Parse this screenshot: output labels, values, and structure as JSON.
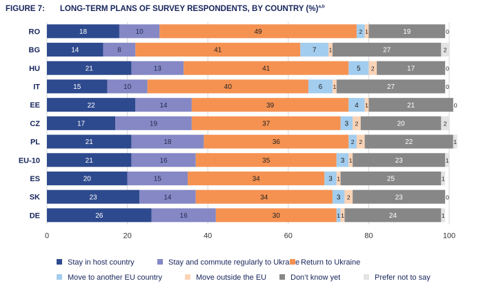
{
  "figure_label": "FIGURE 7:",
  "chart_data": {
    "type": "bar",
    "orientation": "horizontal",
    "stacked": true,
    "title": "LONG-TERM PLANS OF SURVEY RESPONDENTS, BY COUNTRY (%)",
    "title_superscript": "a,b",
    "xlabel": "",
    "ylabel": "",
    "xlim": [
      0,
      100
    ],
    "x_ticks": [
      "0",
      "20",
      "40",
      "60",
      "80",
      "100"
    ],
    "grid": true,
    "legend_position": "bottom",
    "categories": [
      "RO",
      "BG",
      "HU",
      "IT",
      "EE",
      "CZ",
      "PL",
      "EU-10",
      "ES",
      "SK",
      "DE"
    ],
    "series": [
      {
        "name": "Stay in host country",
        "color": "#2e4a8e",
        "label_color": "#ffffff",
        "values": [
          18,
          14,
          21,
          15,
          22,
          17,
          21,
          21,
          20,
          23,
          26
        ]
      },
      {
        "name": "Stay and commute regularly to Ukraine",
        "color": "#8588c5",
        "label_color": "#1f2a4e",
        "values": [
          10,
          8,
          13,
          10,
          14,
          19,
          18,
          16,
          15,
          14,
          16
        ]
      },
      {
        "name": "Return to Ukraine",
        "color": "#f59252",
        "label_color": "#1f1f1f",
        "values": [
          49,
          41,
          41,
          40,
          39,
          37,
          36,
          35,
          34,
          34,
          30
        ]
      },
      {
        "name": "Move to another EU country",
        "color": "#a3cdee",
        "label_color": "#1f1f1f",
        "values": [
          2,
          7,
          5,
          6,
          4,
          3,
          2,
          3,
          3,
          3,
          1
        ]
      },
      {
        "name": "Move outside the EU",
        "color": "#fbd3b6",
        "label_color": "#1f1f1f",
        "values": [
          1,
          1,
          2,
          1,
          1,
          2,
          2,
          1,
          1,
          2,
          1
        ]
      },
      {
        "name": "Don’t know yet",
        "color": "#878787",
        "label_color": "#ffffff",
        "values": [
          19,
          27,
          17,
          27,
          21,
          20,
          22,
          23,
          25,
          23,
          24
        ]
      },
      {
        "name": "Prefer not to say",
        "color": "#e3e3e3",
        "label_color": "#1f1f1f",
        "values": [
          0,
          2,
          0,
          0,
          0,
          2,
          1,
          1,
          1,
          0,
          1
        ]
      }
    ]
  }
}
